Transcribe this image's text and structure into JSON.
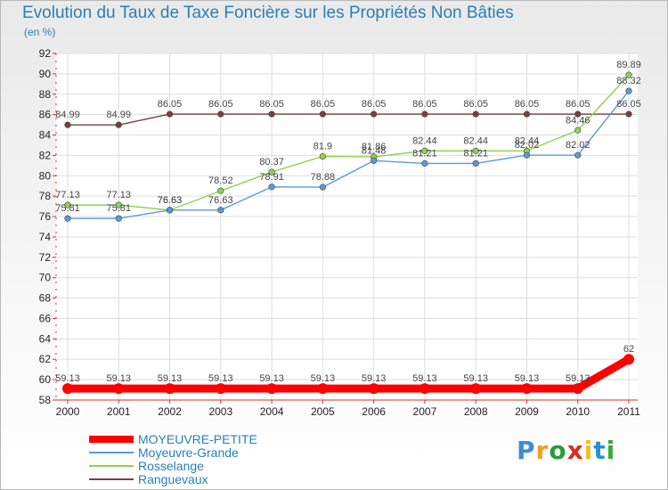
{
  "title": "Evolution du Taux de Taxe Foncière sur les Propriétés Non Bâties",
  "subtitle": "(en %)",
  "logo": {
    "text": "Proxiti",
    "colors": [
      "#3c8fd0",
      "#f0a020",
      "#2a9a3a",
      "#d83020",
      "#f0c020",
      "#2a8fd0",
      "#3aaa30"
    ]
  },
  "chart_data": {
    "type": "line",
    "title": "Evolution du Taux de Taxe Foncière sur les Propriétés Non Bâties",
    "ylabel": "(en %)",
    "xlabel": "",
    "x": [
      "2000",
      "2001",
      "2002",
      "2003",
      "2004",
      "2005",
      "2006",
      "2007",
      "2008",
      "2009",
      "2010",
      "2011"
    ],
    "ylim": [
      58,
      92
    ],
    "yticks": [
      58,
      60,
      62,
      64,
      66,
      68,
      70,
      72,
      74,
      76,
      78,
      80,
      82,
      84,
      86,
      88,
      90,
      92
    ],
    "grid": true,
    "legend_position": "bottom-left",
    "series": [
      {
        "name": "MOYEUVRE-PETITE",
        "color": "#ff0000",
        "emphasis": true,
        "values": [
          59.13,
          59.13,
          59.13,
          59.13,
          59.13,
          59.13,
          59.13,
          59.13,
          59.13,
          59.13,
          59.13,
          62
        ],
        "labels": [
          "59.13",
          "59.13",
          "59.13",
          "59.13",
          "59.13",
          "59.13",
          "59.13",
          "59.13",
          "59.13",
          "59.13",
          "59.13",
          "62"
        ]
      },
      {
        "name": "Moyeuvre-Grande",
        "color": "#5b9bd5",
        "emphasis": false,
        "values": [
          75.81,
          75.81,
          76.63,
          76.63,
          78.91,
          78.88,
          81.48,
          81.21,
          81.21,
          82.02,
          82.02,
          88.32
        ],
        "labels": [
          "75.81",
          "75.81",
          "76.63",
          "76.63",
          "78.91",
          "78.88",
          "81.48",
          "81.21",
          "81.21",
          "82.02",
          "82.02",
          "88.32"
        ]
      },
      {
        "name": "Rosselange",
        "color": "#92d050",
        "emphasis": false,
        "values": [
          77.13,
          77.13,
          76.63,
          78.52,
          80.37,
          81.9,
          81.86,
          82.44,
          82.44,
          82.44,
          84.46,
          89.89
        ],
        "labels": [
          "77.13",
          "77.13",
          "76.63",
          "78.52",
          "80.37",
          "81.9",
          "81.86",
          "82.44",
          "82.44",
          "82.44",
          "84.46",
          "89.89"
        ]
      },
      {
        "name": "Ranguevaux",
        "color": "#7b3f3f",
        "emphasis": false,
        "values": [
          84.99,
          84.99,
          86.05,
          86.05,
          86.05,
          86.05,
          86.05,
          86.05,
          86.05,
          86.05,
          86.05,
          86.05
        ],
        "labels": [
          "84.99",
          "84.99",
          "86.05",
          "86.05",
          "86.05",
          "86.05",
          "86.05",
          "86.05",
          "86.05",
          "86.05",
          "86.05",
          "86.05"
        ]
      }
    ]
  }
}
